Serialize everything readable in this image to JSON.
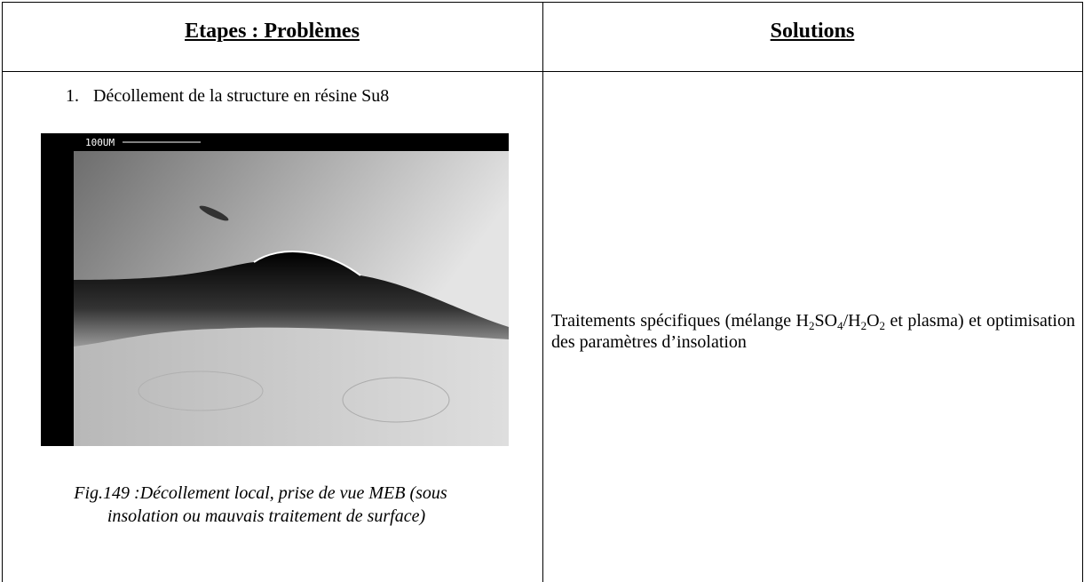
{
  "header": {
    "columns": [
      "Etapes : Problèmes",
      "Solutions"
    ]
  },
  "rows": [
    {
      "step_number": "1.",
      "step_text": "Décollement de la structure en résine Su8",
      "image_scale_label": "100UM",
      "caption": "Fig.149 :Décollement local, prise de vue MEB (sous insolation ou mauvais traitement de surface)",
      "solution_parts": [
        "Traitements spécifiques (mélange H",
        "2",
        "SO",
        "4",
        "/H",
        "2",
        "O",
        "2",
        " et plasma) et optimisation des paramètres d’insolation"
      ]
    }
  ]
}
